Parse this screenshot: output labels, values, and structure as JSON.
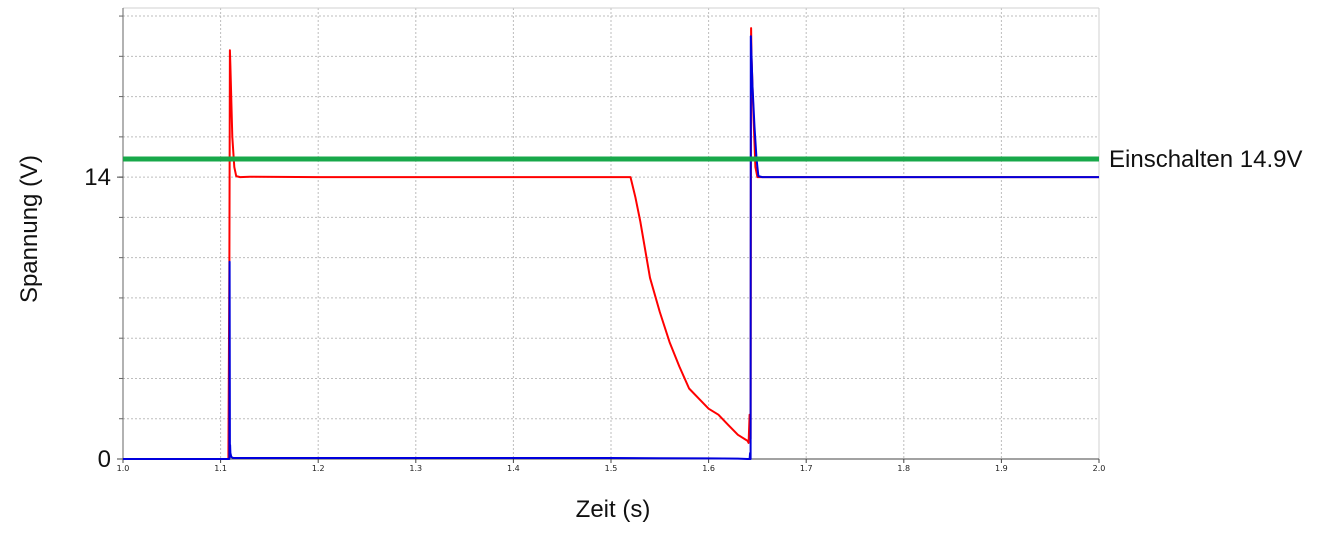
{
  "chart_data": {
    "type": "line",
    "title": "",
    "xlabel": "Zeit (s)",
    "ylabel": "Spannung (V)",
    "xlim": [
      1.0,
      2.0
    ],
    "ylim": [
      0,
      22.4
    ],
    "grid": true,
    "x_ticks": [
      "1.0",
      "1.1",
      "1.2",
      "1.3",
      "1.4",
      "1.5",
      "1.6",
      "1.7",
      "1.8",
      "1.9",
      "2.0"
    ],
    "x_tick_values": [
      1.0,
      1.1,
      1.2,
      1.3,
      1.4,
      1.5,
      1.6,
      1.7,
      1.8,
      1.9,
      2.0
    ],
    "y_ticks": [
      "0",
      "14"
    ],
    "y_tick_values": [
      0,
      14
    ],
    "threshold": {
      "label": "Einschalten 14.9V",
      "value": 14.9,
      "color": "#18a84a"
    },
    "series": [
      {
        "color": "#ff0000",
        "x": [
          1.0,
          1.108,
          1.109,
          1.1095,
          1.11,
          1.112,
          1.114,
          1.116,
          1.12,
          1.13,
          1.2,
          1.3,
          1.4,
          1.5,
          1.52,
          1.525,
          1.53,
          1.54,
          1.55,
          1.56,
          1.57,
          1.58,
          1.59,
          1.6,
          1.61,
          1.62,
          1.63,
          1.64,
          1.641,
          1.642,
          1.643,
          1.6435,
          1.644,
          1.646,
          1.648,
          1.65,
          1.7,
          1.8,
          1.9,
          2.0
        ],
        "y": [
          0.0,
          0.0,
          10.0,
          20.3,
          19.5,
          16.0,
          14.5,
          14.05,
          14.0,
          14.02,
          14.0,
          14.0,
          14.0,
          14.0,
          14.0,
          13.0,
          11.8,
          9.0,
          7.3,
          5.8,
          4.6,
          3.5,
          3.0,
          2.5,
          2.2,
          1.7,
          1.2,
          0.9,
          0.8,
          2.2,
          1.0,
          21.4,
          20.0,
          17.0,
          14.5,
          14.0,
          14.0,
          14.0,
          14.0,
          14.0
        ]
      },
      {
        "color": "#0000dd",
        "x": [
          1.0,
          1.108,
          1.109,
          1.1092,
          1.1095,
          1.1097,
          1.11,
          1.111,
          1.113,
          1.12,
          1.2,
          1.3,
          1.4,
          1.5,
          1.55,
          1.6,
          1.63,
          1.64,
          1.642,
          1.6425,
          1.643,
          1.6432,
          1.644,
          1.645,
          1.647,
          1.649,
          1.65,
          1.651,
          1.655,
          1.7,
          1.8,
          1.9,
          2.0
        ],
        "y": [
          0.0,
          0.0,
          0.0,
          9.8,
          0.5,
          0.7,
          0.3,
          0.1,
          0.05,
          0.05,
          0.05,
          0.05,
          0.05,
          0.05,
          0.04,
          0.03,
          0.02,
          0.0,
          0.0,
          0.3,
          0.0,
          21.0,
          20.0,
          18.5,
          16.5,
          15.0,
          14.5,
          14.05,
          14.0,
          14.0,
          14.0,
          14.0,
          14.0
        ]
      }
    ]
  }
}
